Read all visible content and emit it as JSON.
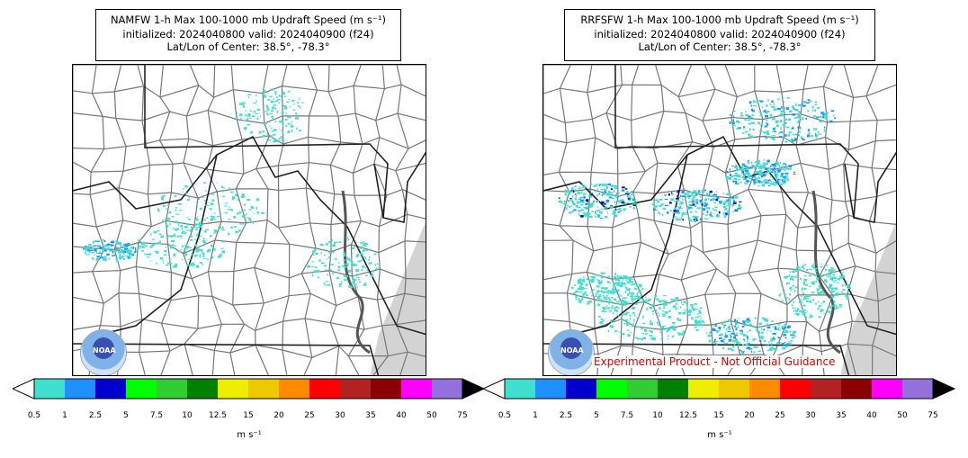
{
  "panels": [
    {
      "title_line1": "NAMFW 1-h Max 100-1000 mb Updraft Speed (m s⁻¹)",
      "title_line2": "initialized: 2024040800 valid: 2024040900 (f24)",
      "title_line3": "Lat/Lon of Center: 38.5°, -78.3°",
      "logo_text": "NOAA",
      "badge": ""
    },
    {
      "title_line1": "RRFSFW 1-h Max 100-1000 mb Updraft Speed (m s⁻¹)",
      "title_line2": "initialized: 2024040800 valid: 2024040900 (f24)",
      "title_line3": "Lat/Lon of Center: 38.5°, -78.3°",
      "logo_text": "NOAA",
      "badge": "Experimental Product - Not Official Guidance"
    }
  ],
  "colorbar": {
    "ticks": [
      "0.5",
      "1",
      "2.5",
      "5",
      "7.5",
      "10",
      "12.5",
      "15",
      "20",
      "25",
      "30",
      "35",
      "40",
      "50",
      "75"
    ],
    "colors": [
      "#40e0d0",
      "#1e90ff",
      "#0000cd",
      "#00ff00",
      "#32cd32",
      "#008000",
      "#eeee00",
      "#eec900",
      "#ff8c00",
      "#ff0000",
      "#b22222",
      "#8b0000",
      "#ff00ff",
      "#9370db"
    ],
    "over_color": "#000000",
    "under_color": "#ffffff",
    "unit_label": "m s⁻¹"
  },
  "colors": {
    "state_border": "#222222",
    "county_border": "#777777",
    "ocean_mask": "#d3d3d3"
  }
}
